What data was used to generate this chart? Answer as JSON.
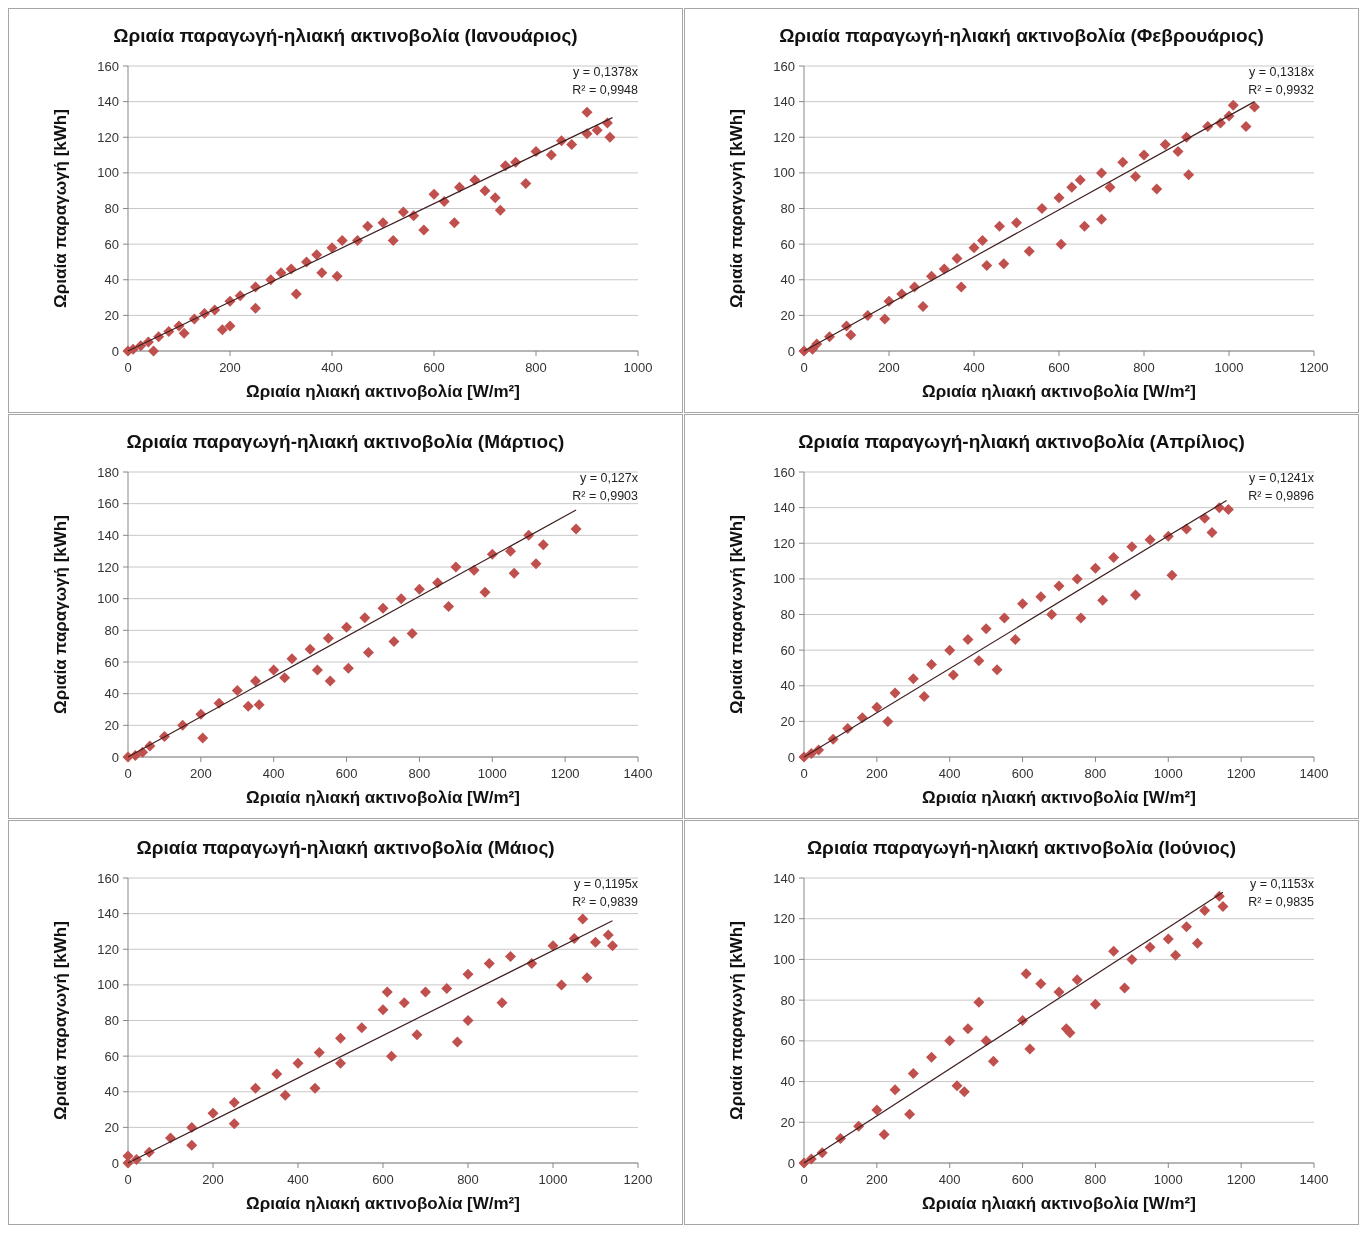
{
  "chart_data": [
    {
      "type": "scatter",
      "title": "Ωριαία παραγωγή-ηλιακή ακτινοβολία (Ιανουάριος)",
      "xlabel": "Ωριαία ηλιακή ακτινοβολία [W/m²]",
      "ylabel": "Ωριαία παραγωγή [kWh]",
      "xlim": [
        0,
        1000
      ],
      "xticks": [
        0,
        200,
        400,
        600,
        800,
        1000
      ],
      "ylim": [
        0,
        160
      ],
      "yticks": [
        0,
        20,
        40,
        60,
        80,
        100,
        120,
        140,
        160
      ],
      "grid": "y",
      "annotations": [
        "y = 0,1378x",
        "R² = 0,9948"
      ],
      "series": [
        {
          "color": "#c0504d",
          "marker": "diamond",
          "x": [
            0,
            10,
            25,
            40,
            50,
            60,
            80,
            100,
            110,
            130,
            150,
            170,
            185,
            200,
            200,
            220,
            250,
            250,
            280,
            300,
            320,
            330,
            350,
            370,
            380,
            400,
            410,
            420,
            450,
            470,
            500,
            520,
            540,
            560,
            580,
            600,
            620,
            640,
            650,
            680,
            700,
            720,
            730,
            740,
            760,
            780,
            800,
            830,
            850,
            870,
            900,
            900,
            920,
            940,
            945
          ],
          "values": [
            0,
            1,
            3,
            5,
            0,
            8,
            11,
            14,
            10,
            18,
            21,
            23,
            12,
            14,
            28,
            31,
            24,
            36,
            40,
            44,
            46,
            32,
            50,
            54,
            44,
            58,
            42,
            62,
            62,
            70,
            72,
            62,
            78,
            76,
            68,
            88,
            84,
            72,
            92,
            96,
            90,
            86,
            79,
            104,
            106,
            94,
            112,
            110,
            118,
            116,
            134,
            122,
            124,
            128,
            120
          ]
        },
        {
          "type": "line",
          "color": "#3f1f1f",
          "x": [
            0,
            950
          ],
          "values": [
            0,
            131
          ]
        }
      ]
    },
    {
      "type": "scatter",
      "title": "Ωριαία παραγωγή-ηλιακή ακτινοβολία (Φεβρουάριος)",
      "xlabel": "Ωριαία ηλιακή ακτινοβολία [W/m²]",
      "ylabel": "Ωριαία παραγωγή [kWh]",
      "xlim": [
        0,
        1200
      ],
      "xticks": [
        0,
        200,
        400,
        600,
        800,
        1000,
        1200
      ],
      "ylim": [
        0,
        160
      ],
      "yticks": [
        0,
        20,
        40,
        60,
        80,
        100,
        120,
        140,
        160
      ],
      "grid": "y",
      "annotations": [
        "y = 0,1318x",
        "R² = 0,9932"
      ],
      "series": [
        {
          "color": "#c0504d",
          "marker": "diamond",
          "x": [
            0,
            20,
            30,
            60,
            100,
            110,
            150,
            190,
            200,
            230,
            260,
            280,
            300,
            330,
            360,
            370,
            400,
            420,
            430,
            460,
            470,
            500,
            530,
            560,
            600,
            605,
            630,
            650,
            660,
            700,
            700,
            720,
            750,
            780,
            800,
            830,
            850,
            880,
            900,
            905,
            950,
            980,
            1000,
            1010,
            1040,
            1060
          ],
          "values": [
            0,
            1,
            4,
            8,
            14,
            9,
            20,
            18,
            28,
            32,
            36,
            25,
            42,
            46,
            52,
            36,
            58,
            62,
            48,
            70,
            49,
            72,
            56,
            80,
            86,
            60,
            92,
            96,
            70,
            100,
            74,
            92,
            106,
            98,
            110,
            91,
            116,
            112,
            120,
            99,
            126,
            128,
            132,
            138,
            126,
            137
          ]
        },
        {
          "type": "line",
          "color": "#3f1f1f",
          "x": [
            0,
            1060
          ],
          "values": [
            0,
            140
          ]
        }
      ]
    },
    {
      "type": "scatter",
      "title": "Ωριαία παραγωγή-ηλιακή ακτινοβολία (Μάρτιος)",
      "xlabel": "Ωριαία ηλιακή ακτινοβολία [W/m²]",
      "ylabel": "Ωριαία παραγωγή [kWh]",
      "xlim": [
        0,
        1400
      ],
      "xticks": [
        0,
        200,
        400,
        600,
        800,
        1000,
        1200,
        1400
      ],
      "ylim": [
        0,
        180
      ],
      "yticks": [
        0,
        20,
        40,
        60,
        80,
        100,
        120,
        140,
        160,
        180
      ],
      "grid": "y",
      "annotations": [
        "y = 0,127x",
        "R² = 0,9903"
      ],
      "series": [
        {
          "color": "#c0504d",
          "marker": "diamond",
          "x": [
            0,
            20,
            40,
            60,
            100,
            150,
            200,
            205,
            250,
            300,
            330,
            350,
            360,
            400,
            430,
            450,
            500,
            520,
            550,
            555,
            600,
            605,
            650,
            660,
            700,
            730,
            750,
            780,
            800,
            850,
            880,
            900,
            950,
            980,
            1000,
            1050,
            1060,
            1100,
            1120,
            1140,
            1230
          ],
          "values": [
            0,
            1,
            3,
            7,
            13,
            20,
            27,
            12,
            34,
            42,
            32,
            48,
            33,
            55,
            50,
            62,
            68,
            55,
            75,
            48,
            82,
            56,
            88,
            66,
            94,
            73,
            100,
            78,
            106,
            110,
            95,
            120,
            118,
            104,
            128,
            130,
            116,
            140,
            122,
            134,
            144
          ]
        },
        {
          "type": "line",
          "color": "#3f1f1f",
          "x": [
            0,
            1230
          ],
          "values": [
            0,
            156
          ]
        }
      ]
    },
    {
      "type": "scatter",
      "title": "Ωριαία παραγωγή-ηλιακή ακτινοβολία (Απρίλιος)",
      "xlabel": "Ωριαία ηλιακή ακτινοβολία [W/m²]",
      "ylabel": "Ωριαία παραγωγή [kWh]",
      "xlim": [
        0,
        1400
      ],
      "xticks": [
        0,
        200,
        400,
        600,
        800,
        1000,
        1200,
        1400
      ],
      "ylim": [
        0,
        160
      ],
      "yticks": [
        0,
        20,
        40,
        60,
        80,
        100,
        120,
        140,
        160
      ],
      "grid": "y",
      "annotations": [
        "y = 0,1241x",
        "R² = 0,9896"
      ],
      "series": [
        {
          "color": "#c0504d",
          "marker": "diamond",
          "x": [
            0,
            20,
            40,
            80,
            120,
            160,
            200,
            230,
            250,
            300,
            330,
            350,
            400,
            410,
            450,
            480,
            500,
            530,
            550,
            580,
            600,
            650,
            680,
            700,
            750,
            760,
            800,
            820,
            850,
            900,
            910,
            950,
            1000,
            1010,
            1050,
            1100,
            1120,
            1140,
            1165
          ],
          "values": [
            0,
            2,
            4,
            10,
            16,
            22,
            28,
            20,
            36,
            44,
            34,
            52,
            60,
            46,
            66,
            54,
            72,
            49,
            78,
            66,
            86,
            90,
            80,
            96,
            100,
            78,
            106,
            88,
            112,
            118,
            91,
            122,
            124,
            102,
            128,
            134,
            126,
            140,
            139
          ]
        },
        {
          "type": "line",
          "color": "#3f1f1f",
          "x": [
            0,
            1160
          ],
          "values": [
            0,
            144
          ]
        }
      ]
    },
    {
      "type": "scatter",
      "title": "Ωριαία παραγωγή-ηλιακή ακτινοβολία (Μάιος)",
      "xlabel": "Ωριαία ηλιακή ακτινοβολία [W/m²]",
      "ylabel": "Ωριαία παραγωγή [kWh]",
      "xlim": [
        0,
        1200
      ],
      "xticks": [
        0,
        200,
        400,
        600,
        800,
        1000,
        1200
      ],
      "ylim": [
        0,
        160
      ],
      "yticks": [
        0,
        20,
        40,
        60,
        80,
        100,
        120,
        140,
        160
      ],
      "grid": "y",
      "annotations": [
        "y = 0,1195x",
        "R² = 0,9839"
      ],
      "series": [
        {
          "color": "#c0504d",
          "marker": "diamond",
          "x": [
            0,
            0,
            20,
            50,
            100,
            150,
            150,
            200,
            250,
            250,
            300,
            350,
            370,
            400,
            440,
            450,
            500,
            500,
            550,
            600,
            610,
            620,
            650,
            680,
            700,
            750,
            775,
            800,
            800,
            850,
            880,
            900,
            950,
            1000,
            1020,
            1050,
            1070,
            1080,
            1100,
            1130,
            1140
          ],
          "values": [
            0,
            4,
            2,
            6,
            14,
            20,
            10,
            28,
            34,
            22,
            42,
            50,
            38,
            56,
            42,
            62,
            70,
            56,
            76,
            86,
            96,
            60,
            90,
            72,
            96,
            98,
            68,
            106,
            80,
            112,
            90,
            116,
            112,
            122,
            100,
            126,
            137,
            104,
            124,
            128,
            122
          ]
        },
        {
          "type": "line",
          "color": "#3f1f1f",
          "x": [
            0,
            1140
          ],
          "values": [
            0,
            136
          ]
        }
      ]
    },
    {
      "type": "scatter",
      "title": "Ωριαία παραγωγή-ηλιακή ακτινοβολία (Ιούνιος)",
      "xlabel": "Ωριαία ηλιακή ακτινοβολία [W/m²]",
      "ylabel": "Ωριαία παραγωγή [kWh]",
      "xlim": [
        0,
        1400
      ],
      "xticks": [
        0,
        200,
        400,
        600,
        800,
        1000,
        1200,
        1400
      ],
      "ylim": [
        0,
        140
      ],
      "yticks": [
        0,
        20,
        40,
        60,
        80,
        100,
        120,
        140
      ],
      "grid": "y",
      "annotations": [
        "y = 0,1153x",
        "R² = 0,9835"
      ],
      "series": [
        {
          "color": "#c0504d",
          "marker": "diamond",
          "x": [
            0,
            20,
            50,
            100,
            150,
            200,
            220,
            250,
            290,
            300,
            350,
            400,
            420,
            440,
            450,
            480,
            500,
            520,
            600,
            610,
            620,
            650,
            700,
            720,
            730,
            750,
            800,
            850,
            880,
            900,
            950,
            1000,
            1020,
            1050,
            1080,
            1100,
            1140,
            1150
          ],
          "values": [
            0,
            2,
            5,
            12,
            18,
            26,
            14,
            36,
            24,
            44,
            52,
            60,
            38,
            35,
            66,
            79,
            60,
            50,
            70,
            93,
            56,
            88,
            84,
            66,
            64,
            90,
            78,
            104,
            86,
            100,
            106,
            110,
            102,
            116,
            108,
            124,
            131,
            126
          ]
        },
        {
          "type": "line",
          "color": "#3f1f1f",
          "x": [
            0,
            1150
          ],
          "values": [
            0,
            133
          ]
        }
      ]
    }
  ]
}
